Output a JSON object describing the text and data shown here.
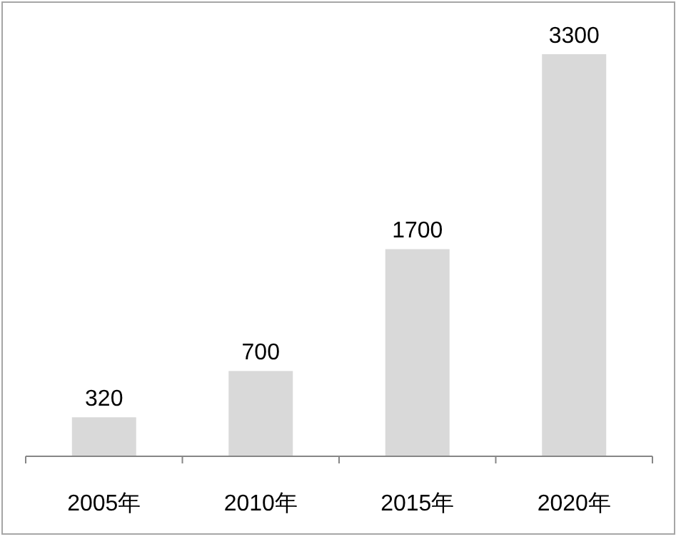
{
  "chart_data": {
    "type": "bar",
    "categories": [
      "2005年",
      "2010年",
      "2015年",
      "2020年"
    ],
    "values": [
      320,
      700,
      1700,
      3300
    ],
    "color": "#d9d9d9",
    "data_labels": true
  }
}
